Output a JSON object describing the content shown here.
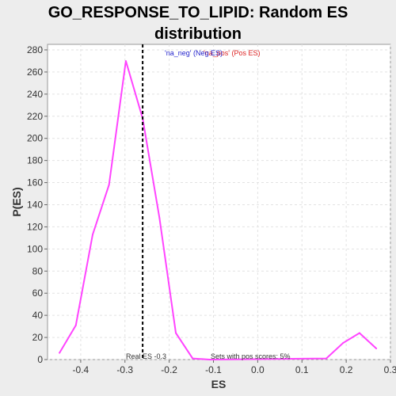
{
  "chart_data": {
    "type": "line",
    "title_line1": "GO_RESPONSE_TO_LIPID: Random ES",
    "title_line2": "distribution",
    "xlabel": "ES",
    "ylabel": "P(ES)",
    "xlim": [
      -0.475,
      0.3
    ],
    "ylim": [
      0,
      285
    ],
    "x_ticks": [
      -0.4,
      -0.3,
      -0.2,
      -0.1,
      0.0,
      0.1,
      0.2,
      0.3
    ],
    "x_tick_labels": [
      "-0.4",
      "-0.3",
      "-0.2",
      "-0.1",
      "0.0",
      "0.1",
      "0.2",
      "0.3"
    ],
    "y_ticks": [
      0,
      20,
      40,
      60,
      80,
      100,
      120,
      140,
      160,
      180,
      200,
      220,
      240,
      260,
      280
    ],
    "y_tick_labels": [
      "0",
      "20",
      "40",
      "60",
      "80",
      "100",
      "120",
      "140",
      "160",
      "180",
      "200",
      "220",
      "240",
      "260",
      "280"
    ],
    "grid": true,
    "series": [
      {
        "color": "#ff44ff",
        "x": [
          -0.448,
          -0.411,
          -0.373,
          -0.336,
          -0.298,
          -0.26,
          -0.222,
          -0.185,
          -0.147,
          -0.109,
          0.155,
          0.193,
          0.23,
          0.268
        ],
        "y": [
          6,
          31,
          113,
          158,
          270,
          218,
          128,
          24,
          1,
          0,
          1,
          15,
          24,
          10
        ]
      }
    ],
    "legend": {
      "neg_text": "'na_neg' (Neg ES)",
      "pos_text": "'na_pos' (Pos ES)",
      "neg_color": "#2222cc",
      "pos_color": "#dd2222",
      "placement": "top-center"
    },
    "real_es": {
      "value": -0.26,
      "label": "Real ES -0.3"
    },
    "annotation": "Sets with pos scores: 5%"
  }
}
